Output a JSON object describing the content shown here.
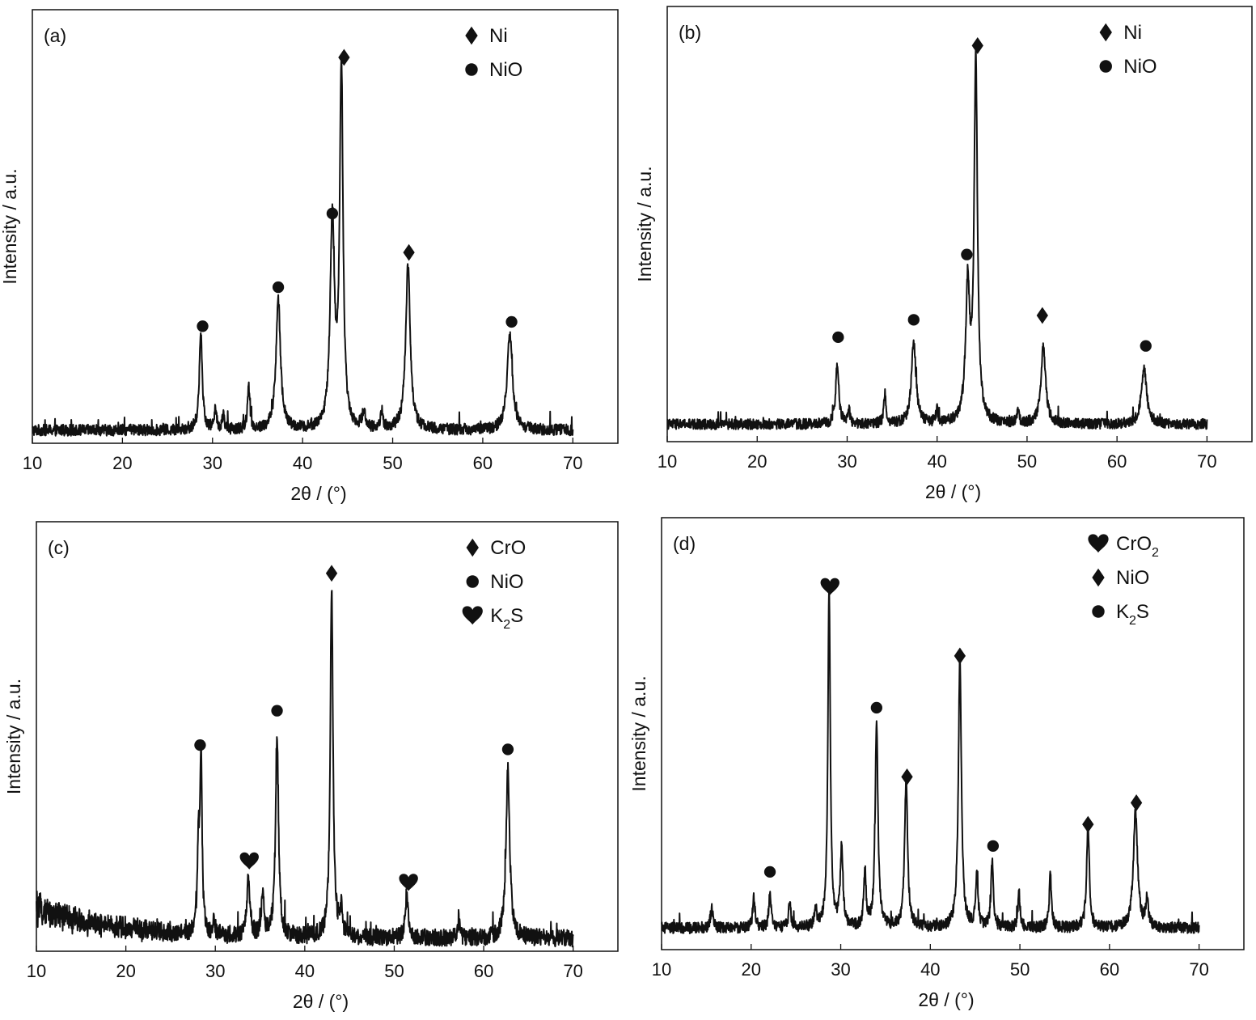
{
  "figure": {
    "panels": [
      {
        "tag": "(a)"
      },
      {
        "tag": "(b)"
      },
      {
        "tag": "(c)"
      },
      {
        "tag": "(d)"
      }
    ]
  },
  "chart_data": [
    {
      "type": "line",
      "panel_label": "(a)",
      "xlabel": "2θ / (°)",
      "ylabel": "Intensity / a.u.",
      "xlim": [
        10,
        75
      ],
      "xticks": [
        10,
        20,
        30,
        40,
        50,
        60,
        70
      ],
      "y_axis_ticks": false,
      "ylim": [
        0,
        100
      ],
      "baseline": 3,
      "noise": 1.3,
      "legend": {
        "position": "top-right",
        "entries": [
          {
            "marker": "diamond",
            "label": "Ni"
          },
          {
            "marker": "circle",
            "label": "NiO"
          }
        ]
      },
      "peaks": [
        {
          "x": 28.7,
          "y": 22,
          "w": 0.2
        },
        {
          "x": 30.3,
          "y": 5,
          "w": 0.15
        },
        {
          "x": 31.2,
          "y": 4,
          "w": 0.12
        },
        {
          "x": 34.0,
          "y": 10,
          "w": 0.15
        },
        {
          "x": 37.3,
          "y": 30,
          "w": 0.3
        },
        {
          "x": 43.3,
          "y": 48,
          "w": 0.28
        },
        {
          "x": 44.3,
          "y": 83,
          "w": 0.22
        },
        {
          "x": 46.8,
          "y": 4,
          "w": 0.2
        },
        {
          "x": 48.8,
          "y": 4,
          "w": 0.15
        },
        {
          "x": 51.7,
          "y": 38,
          "w": 0.3
        },
        {
          "x": 63.0,
          "y": 22,
          "w": 0.35
        }
      ],
      "markers": [
        {
          "type": "circle",
          "x": 28.9,
          "y": 27
        },
        {
          "type": "circle",
          "x": 37.3,
          "y": 36
        },
        {
          "type": "circle",
          "x": 43.3,
          "y": 53
        },
        {
          "type": "diamond",
          "x": 44.6,
          "y": 89
        },
        {
          "type": "diamond",
          "x": 51.8,
          "y": 44
        },
        {
          "type": "circle",
          "x": 63.2,
          "y": 28
        }
      ]
    },
    {
      "type": "line",
      "panel_label": "(b)",
      "xlabel": "2θ / (°)",
      "ylabel": "Intensity / a.u.",
      "xlim": [
        10,
        75
      ],
      "xticks": [
        10,
        20,
        30,
        40,
        50,
        60,
        70
      ],
      "y_axis_ticks": false,
      "ylim": [
        0,
        100
      ],
      "baseline": 4,
      "noise": 1.2,
      "legend": {
        "position": "top-right",
        "entries": [
          {
            "marker": "diamond",
            "label": "Ni"
          },
          {
            "marker": "circle",
            "label": "NiO"
          }
        ]
      },
      "peaks": [
        {
          "x": 28.9,
          "y": 14,
          "w": 0.2
        },
        {
          "x": 30.2,
          "y": 3,
          "w": 0.15
        },
        {
          "x": 34.2,
          "y": 7,
          "w": 0.15
        },
        {
          "x": 37.4,
          "y": 19,
          "w": 0.3
        },
        {
          "x": 40.0,
          "y": 3,
          "w": 0.12
        },
        {
          "x": 43.4,
          "y": 30,
          "w": 0.28
        },
        {
          "x": 44.3,
          "y": 83,
          "w": 0.22
        },
        {
          "x": 49.0,
          "y": 3,
          "w": 0.15
        },
        {
          "x": 51.8,
          "y": 18,
          "w": 0.3
        },
        {
          "x": 63.0,
          "y": 13,
          "w": 0.35
        }
      ],
      "markers": [
        {
          "type": "circle",
          "x": 29.0,
          "y": 24
        },
        {
          "type": "circle",
          "x": 37.4,
          "y": 28
        },
        {
          "type": "circle",
          "x": 43.3,
          "y": 43
        },
        {
          "type": "diamond",
          "x": 44.5,
          "y": 91
        },
        {
          "type": "diamond",
          "x": 51.7,
          "y": 29
        },
        {
          "type": "circle",
          "x": 63.2,
          "y": 22
        }
      ]
    },
    {
      "type": "line",
      "panel_label": "(c)",
      "xlabel": "2θ / (°)",
      "ylabel": "Intensity / a.u.",
      "xlim": [
        10,
        75
      ],
      "xticks": [
        10,
        20,
        30,
        40,
        50,
        60,
        70
      ],
      "y_axis_ticks": false,
      "ylim": [
        0,
        100
      ],
      "baseline": 3,
      "noise": 2.0,
      "decay": {
        "amplitude": 7,
        "x0": 10,
        "scale": 9
      },
      "legend": {
        "position": "top-right",
        "entries": [
          {
            "marker": "diamond",
            "label": "CrO"
          },
          {
            "marker": "circle",
            "label": "NiO"
          },
          {
            "marker": "heart",
            "label": "K",
            "sub": "2",
            "tail": "S"
          }
        ]
      },
      "peaks": [
        {
          "x": 28.4,
          "y": 42,
          "w": 0.14
        },
        {
          "x": 28.1,
          "y": 20,
          "w": 0.12
        },
        {
          "x": 29.8,
          "y": 3,
          "w": 0.15
        },
        {
          "x": 33.7,
          "y": 14,
          "w": 0.18
        },
        {
          "x": 35.3,
          "y": 9,
          "w": 0.18
        },
        {
          "x": 36.9,
          "y": 46,
          "w": 0.2
        },
        {
          "x": 43.0,
          "y": 82,
          "w": 0.18
        },
        {
          "x": 44.1,
          "y": 6,
          "w": 0.15
        },
        {
          "x": 51.4,
          "y": 10,
          "w": 0.2
        },
        {
          "x": 57.2,
          "y": 4,
          "w": 0.15
        },
        {
          "x": 62.7,
          "y": 39,
          "w": 0.25
        }
      ],
      "markers": [
        {
          "type": "circle",
          "x": 28.3,
          "y": 48
        },
        {
          "type": "heart",
          "x": 33.8,
          "y": 21
        },
        {
          "type": "circle",
          "x": 36.9,
          "y": 56
        },
        {
          "type": "diamond",
          "x": 43.0,
          "y": 88
        },
        {
          "type": "heart",
          "x": 51.6,
          "y": 16
        },
        {
          "type": "circle",
          "x": 62.7,
          "y": 47
        }
      ]
    },
    {
      "type": "line",
      "panel_label": "(d)",
      "xlabel": "2θ / (°)",
      "ylabel": "Intensity / a.u.",
      "xlim": [
        10,
        75
      ],
      "xticks": [
        10,
        20,
        30,
        40,
        50,
        60,
        70
      ],
      "y_axis_ticks": false,
      "ylim": [
        0,
        100
      ],
      "baseline": 5,
      "noise": 1.3,
      "legend": {
        "position": "top-right",
        "entries": [
          {
            "marker": "heart",
            "label": "CrO",
            "sub": "2",
            "tail": ""
          },
          {
            "marker": "diamond",
            "label": "NiO"
          },
          {
            "marker": "circle",
            "label": "K",
            "sub": "2",
            "tail": "S"
          }
        ]
      },
      "peaks": [
        {
          "x": 15.6,
          "y": 5,
          "w": 0.15
        },
        {
          "x": 20.3,
          "y": 7,
          "w": 0.15
        },
        {
          "x": 22.1,
          "y": 8,
          "w": 0.15
        },
        {
          "x": 24.3,
          "y": 6,
          "w": 0.15
        },
        {
          "x": 27.2,
          "y": 4,
          "w": 0.15
        },
        {
          "x": 28.7,
          "y": 79,
          "w": 0.16
        },
        {
          "x": 30.1,
          "y": 18,
          "w": 0.18
        },
        {
          "x": 32.7,
          "y": 13,
          "w": 0.15
        },
        {
          "x": 34.0,
          "y": 48,
          "w": 0.18
        },
        {
          "x": 37.3,
          "y": 34,
          "w": 0.2
        },
        {
          "x": 43.3,
          "y": 62,
          "w": 0.2
        },
        {
          "x": 45.2,
          "y": 13,
          "w": 0.15
        },
        {
          "x": 46.9,
          "y": 15,
          "w": 0.15
        },
        {
          "x": 49.9,
          "y": 8,
          "w": 0.15
        },
        {
          "x": 53.4,
          "y": 12,
          "w": 0.15
        },
        {
          "x": 57.6,
          "y": 24,
          "w": 0.18
        },
        {
          "x": 62.9,
          "y": 27,
          "w": 0.28
        },
        {
          "x": 64.2,
          "y": 7,
          "w": 0.15
        }
      ],
      "markers": [
        {
          "type": "circle",
          "x": 22.1,
          "y": 18
        },
        {
          "type": "heart",
          "x": 28.8,
          "y": 84
        },
        {
          "type": "circle",
          "x": 34.0,
          "y": 56
        },
        {
          "type": "diamond",
          "x": 37.4,
          "y": 40
        },
        {
          "type": "diamond",
          "x": 43.3,
          "y": 68
        },
        {
          "type": "circle",
          "x": 47.0,
          "y": 24
        },
        {
          "type": "diamond",
          "x": 57.6,
          "y": 29
        },
        {
          "type": "diamond",
          "x": 63.0,
          "y": 34
        }
      ]
    }
  ]
}
